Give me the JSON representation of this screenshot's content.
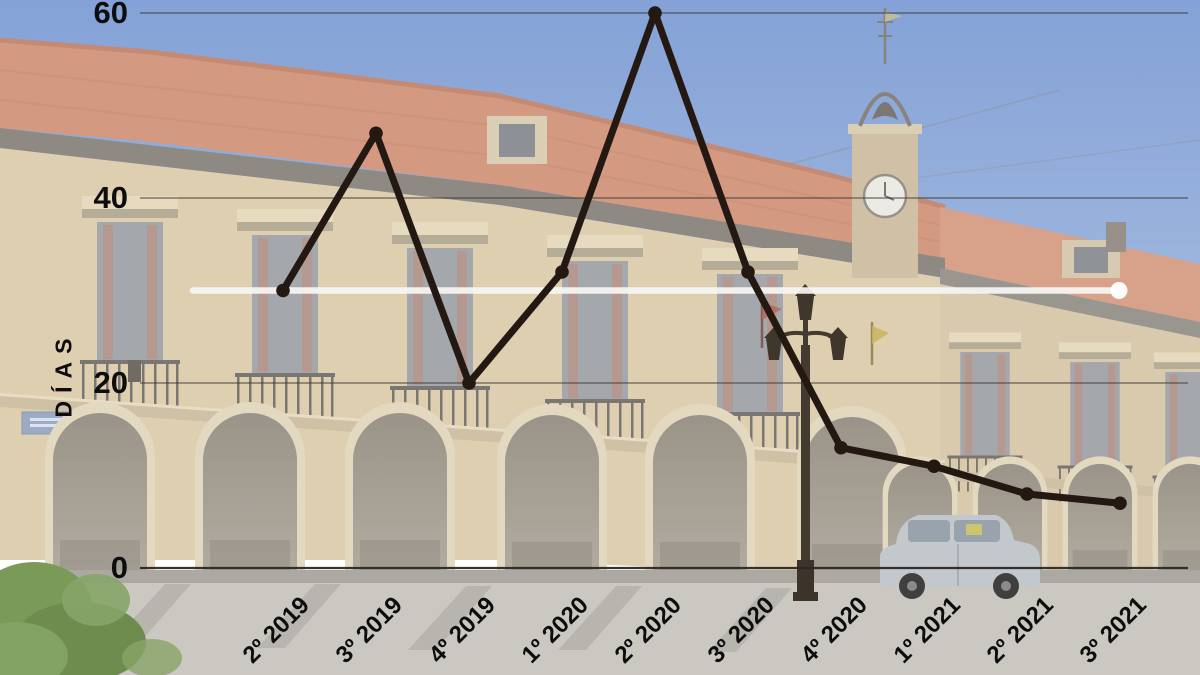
{
  "chart_data": {
    "type": "line",
    "title": "",
    "xlabel": "",
    "ylabel": "DÍAS",
    "categories": [
      "2º 2019",
      "3º 2019",
      "4º 2019",
      "1º 2020",
      "2º 2020",
      "3º 2020",
      "4º 2020",
      "1º 2021",
      "2º 2021",
      "3º 2021"
    ],
    "series": [
      {
        "name": "días",
        "color": "#241812",
        "values": [
          30,
          47,
          20,
          32,
          60,
          32,
          13,
          11,
          8,
          7
        ]
      }
    ],
    "reference_line": {
      "value": 30,
      "color": "#f7f6f4"
    },
    "y_ticks": [
      0,
      20,
      40,
      60
    ],
    "ylim": [
      0,
      60
    ],
    "grid": true,
    "legend_position": "none",
    "background_description": "faded photograph of a stone town hall: red tile roof, clock tower with bell, two rows of balconied windows, ground-floor arcade of round arches, ornate street lamp, parked silver car, small green tree"
  },
  "colors": {
    "grid": "#3a3631",
    "axis": "#2c2824",
    "tick_text": "#0d0d0d"
  }
}
